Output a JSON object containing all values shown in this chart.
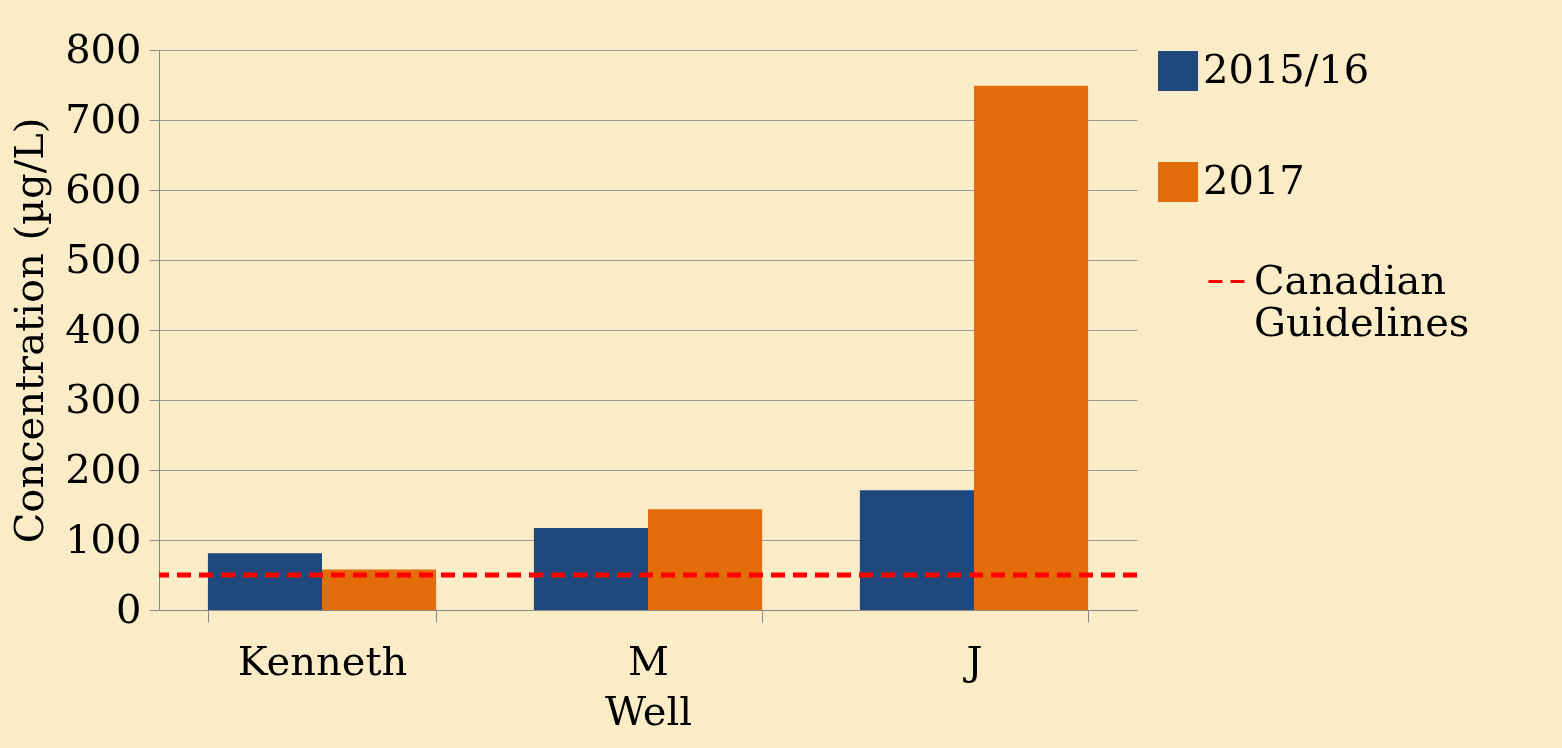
{
  "chart_data": {
    "type": "bar",
    "xlabel": "Well",
    "ylabel": "Concentration (µg/L)",
    "categories": [
      "Kenneth",
      "M",
      "J"
    ],
    "series": [
      {
        "name": "2015/16",
        "color": "#1f497d",
        "values": [
          81,
          117,
          171
        ]
      },
      {
        "name": "2017",
        "color": "#e46c0a",
        "values": [
          58,
          144,
          749
        ]
      }
    ],
    "ref_lines": [
      {
        "axis": "y",
        "value": 50,
        "label": "Canadian Guidelines",
        "color": "#ff0000",
        "line_style": "dashed"
      }
    ],
    "ylim": [
      0,
      800
    ],
    "yticks": [
      0,
      100,
      200,
      300,
      400,
      500,
      600,
      700,
      800
    ],
    "grid": "y",
    "legend": "right"
  }
}
